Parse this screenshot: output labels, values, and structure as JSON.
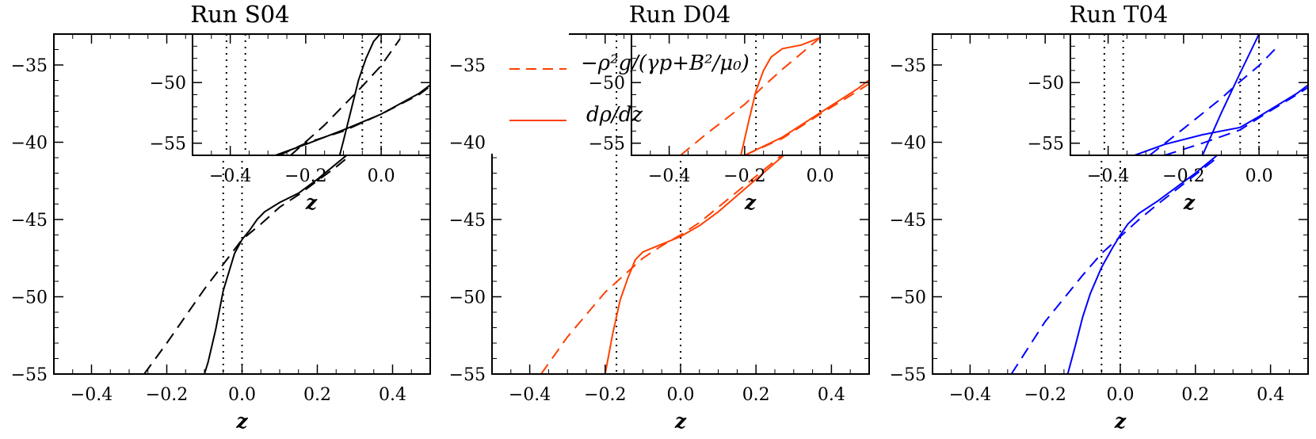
{
  "figure": {
    "background": "#ffffff"
  },
  "legend": {
    "dashed_label": "−ρ²g/(γp+B²/μ₀)",
    "solid_label": "dρ/dz",
    "color": "#ff4000"
  },
  "chart_data": [
    {
      "type": "line",
      "title": "Run S04",
      "xlabel": "z",
      "ylabel": "",
      "xlim": [
        -0.5,
        0.5
      ],
      "ylim": [
        -55,
        -33
      ],
      "xticks": [
        "−0.4",
        "−0.2",
        "0.0",
        "0.2",
        "0.4"
      ],
      "yticks": [
        "−35",
        "−40",
        "−45",
        "−50",
        "−55"
      ],
      "color": "#000000",
      "vlines": [
        -0.05,
        0.0
      ],
      "series": [
        {
          "style": "dashed",
          "x": [
            -0.26,
            -0.2,
            -0.1,
            -0.05,
            0.0,
            0.05,
            0.1,
            0.15,
            0.2,
            0.25,
            0.3,
            0.35,
            0.4,
            0.45,
            0.5
          ],
          "y": [
            -55.0,
            -53.0,
            -49.5,
            -47.9,
            -46.3,
            -45.3,
            -44.2,
            -43.4,
            -42.5,
            -41.6,
            -40.6,
            -39.6,
            -38.6,
            -37.6,
            -36.5
          ]
        },
        {
          "style": "solid",
          "x": [
            -0.1,
            -0.09,
            -0.07,
            -0.05,
            -0.02,
            0.0,
            0.02,
            0.04,
            0.06,
            0.1,
            0.15,
            0.2,
            0.25,
            0.3,
            0.35,
            0.4,
            0.45,
            0.5
          ],
          "y": [
            -55.0,
            -54.2,
            -52.1,
            -49.6,
            -47.2,
            -46.3,
            -45.7,
            -45.0,
            -44.5,
            -43.9,
            -43.3,
            -42.4,
            -41.4,
            -40.4,
            -39.4,
            -38.4,
            -37.3,
            -36.1
          ]
        }
      ]
    },
    {
      "type": "line",
      "title": "",
      "xlabel": "z",
      "ylabel": "",
      "xlim": [
        -0.5,
        0.5
      ],
      "ylim": [
        -55,
        -33
      ],
      "xticks": [
        "−0.4",
        "−0.2",
        "0.0",
        "0.2",
        "0.4"
      ],
      "yticks": [
        "−35",
        "−40",
        "−45",
        "−50",
        "−55"
      ],
      "color": "#ff4000",
      "vlines": [
        -0.17,
        0.0
      ],
      "series": [
        {
          "style": "dashed",
          "x": [
            -0.37,
            -0.3,
            -0.2,
            -0.1,
            -0.05,
            0.0,
            0.05,
            0.1,
            0.2,
            0.3,
            0.4,
            0.5
          ],
          "y": [
            -55.0,
            -52.6,
            -49.7,
            -47.5,
            -46.7,
            -46.0,
            -45.2,
            -44.2,
            -42.2,
            -40.2,
            -38.2,
            -36.3
          ]
        },
        {
          "style": "solid",
          "x": [
            -0.2,
            -0.18,
            -0.16,
            -0.14,
            -0.12,
            -0.1,
            -0.05,
            0.0,
            0.05,
            0.1,
            0.2,
            0.3,
            0.4,
            0.5
          ],
          "y": [
            -55.0,
            -52.4,
            -50.2,
            -48.8,
            -47.6,
            -47.1,
            -46.6,
            -46.1,
            -45.4,
            -44.5,
            -42.4,
            -40.3,
            -38.3,
            -36.2
          ]
        }
      ]
    },
    {
      "type": "line",
      "title": "",
      "xlabel": "z",
      "ylabel": "",
      "xlim": [
        -0.5,
        0.5
      ],
      "ylim": [
        -55,
        -33
      ],
      "xticks": [
        "−0.4",
        "−0.2",
        "0.0",
        "0.2",
        "0.4"
      ],
      "yticks": [
        "−35",
        "−40",
        "−45",
        "−50",
        "−55"
      ],
      "color": "#0000ff",
      "vlines": [
        -0.05,
        0.0
      ],
      "series": [
        {
          "style": "dashed",
          "x": [
            -0.29,
            -0.2,
            -0.1,
            -0.05,
            0.0,
            0.05,
            0.1,
            0.2,
            0.3,
            0.4,
            0.5
          ],
          "y": [
            -55.0,
            -51.6,
            -48.6,
            -47.2,
            -46.1,
            -45.0,
            -44.0,
            -42.1,
            -40.2,
            -38.2,
            -36.0
          ]
        },
        {
          "style": "solid",
          "x": [
            -0.14,
            -0.12,
            -0.1,
            -0.08,
            -0.05,
            -0.02,
            0.0,
            0.02,
            0.05,
            0.1,
            0.2,
            0.3,
            0.4,
            0.5
          ],
          "y": [
            -55.0,
            -53.2,
            -51.3,
            -49.8,
            -48.1,
            -46.8,
            -46.0,
            -45.3,
            -44.6,
            -43.8,
            -42.0,
            -40.0,
            -37.9,
            -35.6
          ]
        }
      ]
    },
    {
      "type": "line",
      "title": "Run S04",
      "xlabel": "z",
      "ylabel": "",
      "xlim": [
        -0.5,
        0.13
      ],
      "ylim": [
        -56,
        -46
      ],
      "xticks": [
        "−0.4",
        "−0.2",
        "0.0"
      ],
      "yticks": [
        "−50",
        "−55"
      ],
      "color": "#000000",
      "vlines": [
        -0.41,
        -0.36,
        -0.05,
        0.0
      ],
      "series": [
        {
          "style": "dashed",
          "x": [
            -0.24,
            -0.15,
            -0.05,
            0.0,
            0.05
          ],
          "y": [
            -56.0,
            -53.5,
            -50.3,
            -48.6,
            -46.4
          ]
        },
        {
          "style": "solid",
          "x": [
            -0.11,
            -0.1,
            -0.08,
            -0.06,
            -0.04,
            -0.02,
            0.0
          ],
          "y": [
            -56.0,
            -54.8,
            -52.3,
            -49.8,
            -48.0,
            -46.6,
            -45.9
          ]
        },
        {
          "style": "dashed",
          "x": [
            -0.27,
            -0.2,
            -0.1,
            0.0,
            0.1,
            0.13
          ],
          "y": [
            -56.0,
            -55.0,
            -54.0,
            -52.6,
            -51.0,
            -50.3
          ]
        },
        {
          "style": "solid",
          "x": [
            -0.28,
            -0.2,
            -0.15,
            -0.1,
            0.0,
            0.1,
            0.13
          ],
          "y": [
            -56.0,
            -55.1,
            -54.5,
            -53.9,
            -52.6,
            -50.9,
            -50.2
          ]
        }
      ]
    },
    {
      "type": "line",
      "title": "Run D04",
      "xlabel": "z",
      "ylabel": "",
      "xlim": [
        -0.5,
        0.13
      ],
      "ylim": [
        -56,
        -46
      ],
      "xticks": [
        "−0.4",
        "−0.2",
        "0.0"
      ],
      "yticks": [
        "−50",
        "−55"
      ],
      "color": "#ff4000",
      "vlines": [
        -0.17,
        0.0
      ],
      "series": [
        {
          "style": "dashed",
          "x": [
            -0.37,
            -0.3,
            -0.2,
            -0.15,
            -0.1,
            -0.05,
            0.0
          ],
          "y": [
            -56.0,
            -54.2,
            -51.8,
            -50.3,
            -48.9,
            -47.6,
            -46.3
          ]
        },
        {
          "style": "solid",
          "x": [
            -0.21,
            -0.19,
            -0.17,
            -0.15,
            -0.13,
            -0.1,
            -0.05,
            0.0
          ],
          "y": [
            -56.0,
            -53.3,
            -50.7,
            -49.0,
            -47.9,
            -47.2,
            -46.9,
            -46.3
          ]
        },
        {
          "style": "dashed",
          "x": [
            -0.2,
            -0.1,
            0.0,
            0.1,
            0.13
          ],
          "y": [
            -56.0,
            -54.6,
            -52.6,
            -50.7,
            -50.1
          ]
        },
        {
          "style": "solid",
          "x": [
            -0.2,
            -0.1,
            0.0,
            0.1,
            0.13
          ],
          "y": [
            -56.0,
            -54.5,
            -52.5,
            -50.5,
            -49.8
          ]
        }
      ]
    },
    {
      "type": "line",
      "title": "Run T04",
      "xlabel": "z",
      "ylabel": "",
      "xlim": [
        -0.5,
        0.13
      ],
      "ylim": [
        -56,
        -46
      ],
      "xticks": [
        "−0.4",
        "−0.2",
        "0.0"
      ],
      "yticks": [
        "−50",
        "−55"
      ],
      "color": "#0000ff",
      "vlines": [
        -0.41,
        -0.36,
        -0.05,
        0.0
      ],
      "series": [
        {
          "style": "dashed",
          "x": [
            -0.29,
            -0.2,
            -0.1,
            -0.05,
            0.0,
            0.05
          ],
          "y": [
            -56.0,
            -53.8,
            -51.3,
            -49.9,
            -48.6,
            -47.0
          ]
        },
        {
          "style": "solid",
          "x": [
            -0.15,
            -0.1,
            -0.05,
            0.0
          ],
          "y": [
            -56.0,
            -52.5,
            -49.2,
            -46.0
          ]
        },
        {
          "style": "dashed",
          "x": [
            -0.25,
            -0.15,
            -0.05,
            0.0,
            0.1,
            0.13
          ],
          "y": [
            -56.0,
            -55.0,
            -53.9,
            -52.9,
            -51.0,
            -50.4
          ]
        },
        {
          "style": "solid",
          "x": [
            -0.33,
            -0.25,
            -0.15,
            -0.05,
            0.0,
            0.1,
            0.13
          ],
          "y": [
            -56.0,
            -55.1,
            -54.3,
            -53.7,
            -52.8,
            -50.9,
            -50.2
          ]
        }
      ]
    }
  ]
}
